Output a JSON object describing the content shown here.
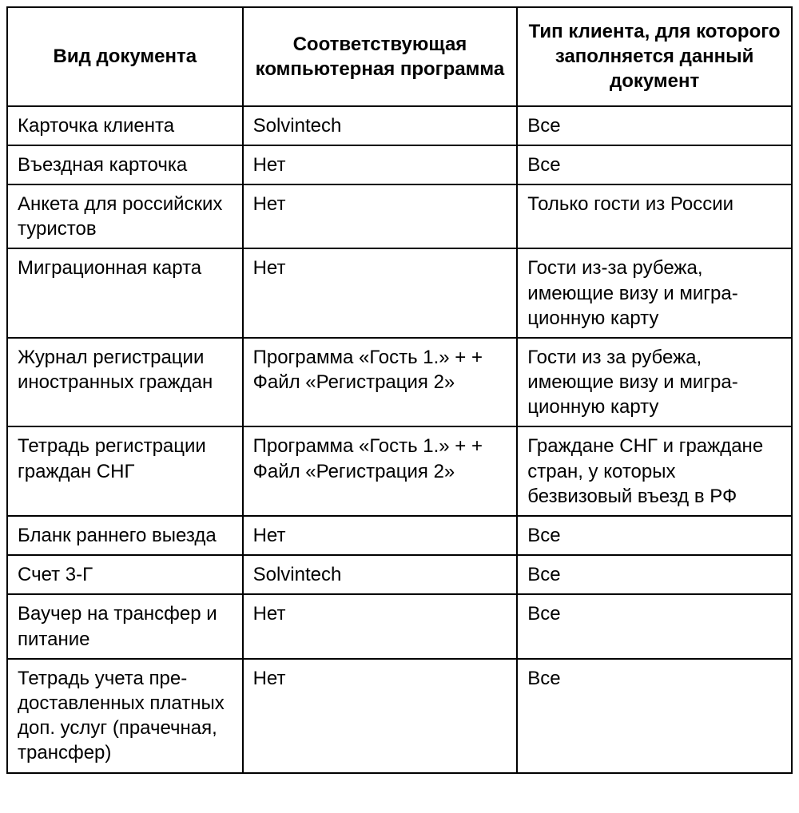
{
  "table": {
    "type": "table",
    "border_color": "#000000",
    "background_color": "#ffffff",
    "text_color": "#000000",
    "header_fontsize": 24,
    "body_fontsize": 24,
    "border_width": 2,
    "column_widths_pct": [
      30,
      35,
      35
    ],
    "columns": [
      "Вид документа",
      "Соответствующая компьютерная программа",
      "Тип клиента, для ко­торого заполняется данный документ"
    ],
    "rows": [
      [
        "Карточка клиента",
        "Solvintech",
        "Все"
      ],
      [
        "Въездная карточка",
        "Нет",
        "Все"
      ],
      [
        "Анкета для россий­ских туристов",
        "Нет",
        "Только гости из России"
      ],
      [
        "Миграционная карта",
        "Нет",
        "Гости из-за рубежа, имеющие визу и мигра­ционную карту"
      ],
      [
        "Журнал регистрации иностранных граж­дан",
        "Программа «Гость 1.» + + Файл «Регистрация 2»",
        "Гости из за рубежа, имеющие визу и мигра­ционную карту"
      ],
      [
        "Тетрадь регистрации граждан СНГ",
        "Программа «Гость 1.» + + Файл «Регистрация 2»",
        "Граждане СНГ и граж­дане стран, у которых безвизовый въезд в РФ"
      ],
      [
        "Бланк раннего выезда",
        "Нет",
        "Все"
      ],
      [
        "Счет 3-Г",
        "Solvintech",
        "Все"
      ],
      [
        "Ваучер на трансфер и питание",
        "Нет",
        "Все"
      ],
      [
        "Тетрадь учета пре­доставленных плат­ных доп. услуг (пра­чечная, трансфер)",
        "Нет",
        "Все"
      ]
    ]
  }
}
